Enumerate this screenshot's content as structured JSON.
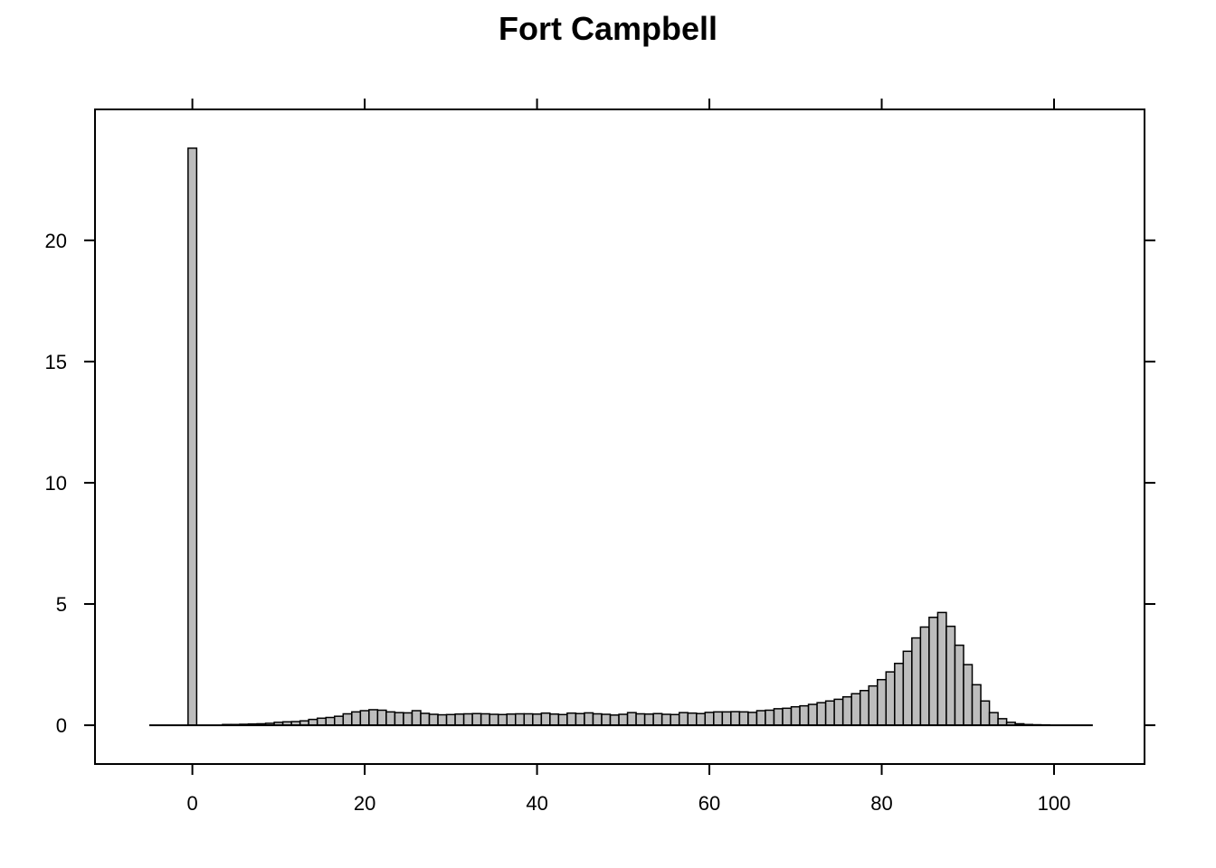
{
  "chart_data": {
    "type": "bar",
    "title": "Fort Campbell",
    "xlabel": "",
    "ylabel": "",
    "xlim": [
      -11.3,
      110.5
    ],
    "ylim": [
      -1.6,
      25.4
    ],
    "xticks": [
      0,
      20,
      40,
      60,
      80,
      100
    ],
    "yticks": [
      0,
      5,
      10,
      15,
      20
    ],
    "baseline_range": [
      -5,
      104.5
    ],
    "bin_width": 1,
    "bins": [
      {
        "x": 0,
        "value": 23.8
      },
      {
        "x": 4,
        "value": 0.03
      },
      {
        "x": 5,
        "value": 0.03
      },
      {
        "x": 6,
        "value": 0.04
      },
      {
        "x": 7,
        "value": 0.05
      },
      {
        "x": 8,
        "value": 0.06
      },
      {
        "x": 9,
        "value": 0.08
      },
      {
        "x": 10,
        "value": 0.12
      },
      {
        "x": 11,
        "value": 0.14
      },
      {
        "x": 12,
        "value": 0.15
      },
      {
        "x": 13,
        "value": 0.18
      },
      {
        "x": 14,
        "value": 0.24
      },
      {
        "x": 15,
        "value": 0.29
      },
      {
        "x": 16,
        "value": 0.32
      },
      {
        "x": 17,
        "value": 0.37
      },
      {
        "x": 18,
        "value": 0.47
      },
      {
        "x": 19,
        "value": 0.55
      },
      {
        "x": 20,
        "value": 0.6
      },
      {
        "x": 21,
        "value": 0.64
      },
      {
        "x": 22,
        "value": 0.62
      },
      {
        "x": 23,
        "value": 0.55
      },
      {
        "x": 24,
        "value": 0.52
      },
      {
        "x": 25,
        "value": 0.51
      },
      {
        "x": 26,
        "value": 0.6
      },
      {
        "x": 27,
        "value": 0.49
      },
      {
        "x": 28,
        "value": 0.45
      },
      {
        "x": 29,
        "value": 0.43
      },
      {
        "x": 30,
        "value": 0.44
      },
      {
        "x": 31,
        "value": 0.46
      },
      {
        "x": 32,
        "value": 0.47
      },
      {
        "x": 33,
        "value": 0.48
      },
      {
        "x": 34,
        "value": 0.47
      },
      {
        "x": 35,
        "value": 0.45
      },
      {
        "x": 36,
        "value": 0.44
      },
      {
        "x": 37,
        "value": 0.46
      },
      {
        "x": 38,
        "value": 0.47
      },
      {
        "x": 39,
        "value": 0.47
      },
      {
        "x": 40,
        "value": 0.46
      },
      {
        "x": 41,
        "value": 0.5
      },
      {
        "x": 42,
        "value": 0.46
      },
      {
        "x": 43,
        "value": 0.44
      },
      {
        "x": 44,
        "value": 0.5
      },
      {
        "x": 45,
        "value": 0.48
      },
      {
        "x": 46,
        "value": 0.51
      },
      {
        "x": 47,
        "value": 0.47
      },
      {
        "x": 48,
        "value": 0.45
      },
      {
        "x": 49,
        "value": 0.42
      },
      {
        "x": 50,
        "value": 0.45
      },
      {
        "x": 51,
        "value": 0.52
      },
      {
        "x": 52,
        "value": 0.47
      },
      {
        "x": 53,
        "value": 0.46
      },
      {
        "x": 54,
        "value": 0.48
      },
      {
        "x": 55,
        "value": 0.45
      },
      {
        "x": 56,
        "value": 0.44
      },
      {
        "x": 57,
        "value": 0.52
      },
      {
        "x": 58,
        "value": 0.5
      },
      {
        "x": 59,
        "value": 0.48
      },
      {
        "x": 60,
        "value": 0.53
      },
      {
        "x": 61,
        "value": 0.55
      },
      {
        "x": 62,
        "value": 0.55
      },
      {
        "x": 63,
        "value": 0.56
      },
      {
        "x": 64,
        "value": 0.55
      },
      {
        "x": 65,
        "value": 0.53
      },
      {
        "x": 66,
        "value": 0.6
      },
      {
        "x": 67,
        "value": 0.62
      },
      {
        "x": 68,
        "value": 0.68
      },
      {
        "x": 69,
        "value": 0.7
      },
      {
        "x": 70,
        "value": 0.76
      },
      {
        "x": 71,
        "value": 0.8
      },
      {
        "x": 72,
        "value": 0.86
      },
      {
        "x": 73,
        "value": 0.93
      },
      {
        "x": 74,
        "value": 1.0
      },
      {
        "x": 75,
        "value": 1.07
      },
      {
        "x": 76,
        "value": 1.17
      },
      {
        "x": 77,
        "value": 1.3
      },
      {
        "x": 78,
        "value": 1.43
      },
      {
        "x": 79,
        "value": 1.62
      },
      {
        "x": 80,
        "value": 1.88
      },
      {
        "x": 81,
        "value": 2.2
      },
      {
        "x": 82,
        "value": 2.55
      },
      {
        "x": 83,
        "value": 3.05
      },
      {
        "x": 84,
        "value": 3.6
      },
      {
        "x": 85,
        "value": 4.05
      },
      {
        "x": 86,
        "value": 4.45
      },
      {
        "x": 87,
        "value": 4.65
      },
      {
        "x": 88,
        "value": 4.08
      },
      {
        "x": 89,
        "value": 3.3
      },
      {
        "x": 90,
        "value": 2.5
      },
      {
        "x": 91,
        "value": 1.67
      },
      {
        "x": 92,
        "value": 1.0
      },
      {
        "x": 93,
        "value": 0.52
      },
      {
        "x": 94,
        "value": 0.27
      },
      {
        "x": 95,
        "value": 0.12
      },
      {
        "x": 96,
        "value": 0.06
      },
      {
        "x": 97,
        "value": 0.03
      },
      {
        "x": 98,
        "value": 0.02
      },
      {
        "x": 99,
        "value": 0.01
      }
    ],
    "colors": {
      "bar_fill": "#bdbdbd",
      "bar_stroke": "#000000"
    },
    "grid": false,
    "legend": "none"
  }
}
